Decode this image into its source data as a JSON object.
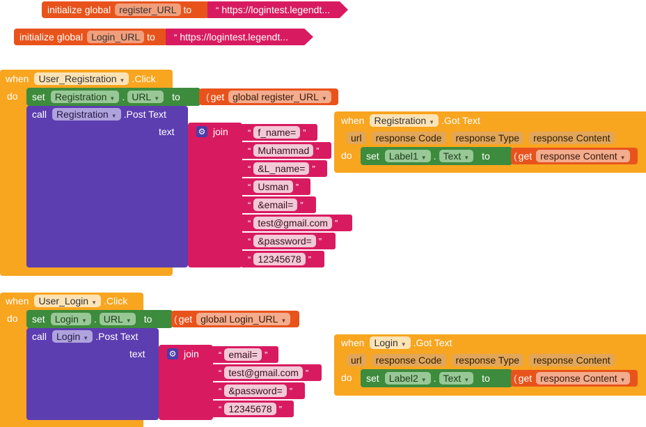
{
  "globals": [
    {
      "init_label": "initialize global",
      "var_name": "register_URL",
      "to_label": "to",
      "value": "https://logintest.legendt..."
    },
    {
      "init_label": "initialize global",
      "var_name": "Login_URL",
      "to_label": "to",
      "value": "https://logintest.legendt..."
    }
  ],
  "registration_click": {
    "when_label": "when",
    "component": "User_Registration",
    "event": ".Click",
    "do_label": "do",
    "set": {
      "set_label": "set",
      "component": "Registration",
      "dot": ".",
      "property": "URL",
      "to_label": "to",
      "get_label": "get",
      "get_var": "global register_URL"
    },
    "call": {
      "call_label": "call",
      "component": "Registration",
      "method": ".Post Text",
      "param_label": "text",
      "join_label": "join",
      "items": [
        "f_name=",
        "Muhammad",
        "&L_name=",
        "Usman",
        "&email=",
        "test@gmail.com",
        "&password=",
        "12345678"
      ]
    }
  },
  "registration_gottext": {
    "when_label": "when",
    "component": "Registration",
    "event": ".Got Text",
    "params": [
      "url",
      "response Code",
      "response Type",
      "response Content"
    ],
    "do_label": "do",
    "set": {
      "set_label": "set",
      "component": "Label1",
      "dot": ".",
      "property": "Text",
      "to_label": "to",
      "get_label": "get",
      "get_var": "response Content"
    }
  },
  "login_click": {
    "when_label": "when",
    "component": "User_Login",
    "event": ".Click",
    "do_label": "do",
    "set": {
      "set_label": "set",
      "component": "Login",
      "dot": ".",
      "property": "URL",
      "to_label": "to",
      "get_label": "get",
      "get_var": "global Login_URL"
    },
    "call": {
      "call_label": "call",
      "component": "Login",
      "method": ".Post Text",
      "param_label": "text",
      "join_label": "join",
      "items": [
        "email=",
        "test@gmail.com",
        "&password=",
        "12345678"
      ]
    }
  },
  "login_gottext": {
    "when_label": "when",
    "component": "Login",
    "event": ".Got Text",
    "params": [
      "url",
      "response Code",
      "response Type",
      "response Content"
    ],
    "do_label": "do",
    "set": {
      "set_label": "set",
      "component": "Label2",
      "dot": ".",
      "property": "Text",
      "to_label": "to",
      "get_label": "get",
      "get_var": "response Content"
    }
  },
  "quote_glyph_open": "“",
  "quote_glyph_close": "”",
  "colors": {
    "event": "#f8a520",
    "init": "#e8531c",
    "text": "#d81b60",
    "set": "#3d8b3d",
    "call": "#5c3eb0"
  }
}
